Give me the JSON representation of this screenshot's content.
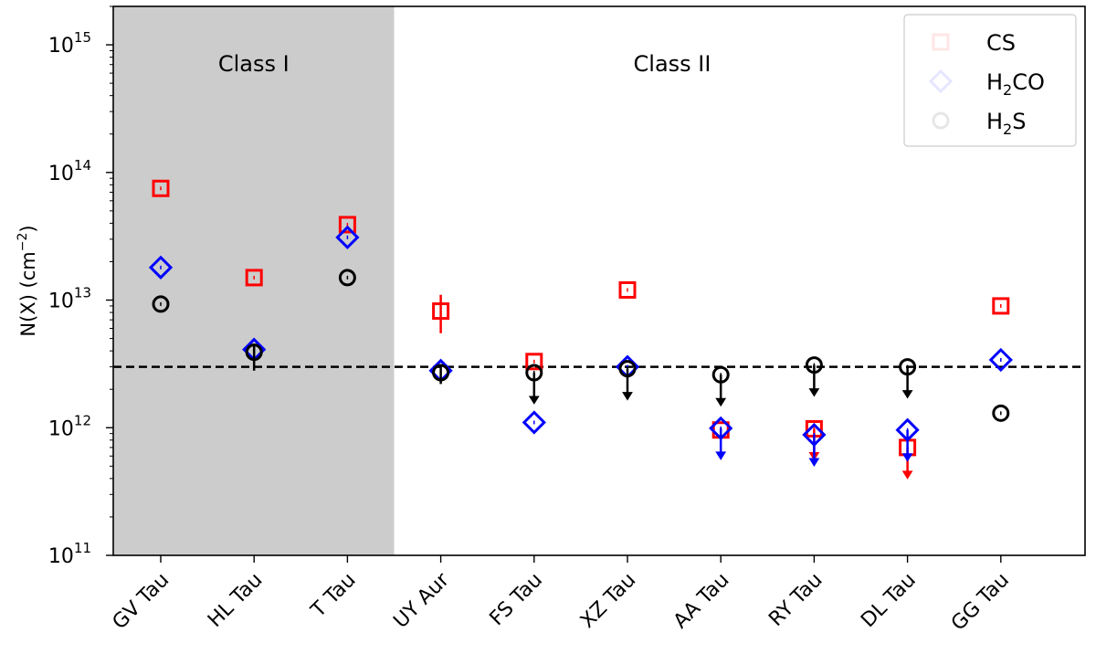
{
  "chart_data": {
    "type": "scatter",
    "categories": [
      "GV Tau",
      "HL Tau",
      "T Tau",
      "UY Aur",
      "FS Tau",
      "XZ Tau",
      "AA Tau",
      "RY Tau",
      "DL Tau",
      "GG Tau"
    ],
    "ylabel_parts": {
      "main": "N(X) (cm",
      "sup": "−2",
      "close": ")"
    },
    "yscale": "log",
    "ylim": [
      100000000000.0,
      2000000000000000.0
    ],
    "yticks": [
      {
        "value": 100000000000.0,
        "base": "10",
        "exp": "11"
      },
      {
        "value": 1000000000000.0,
        "base": "10",
        "exp": "12"
      },
      {
        "value": 10000000000000.0,
        "base": "10",
        "exp": "13"
      },
      {
        "value": 100000000000000.0,
        "base": "10",
        "exp": "14"
      },
      {
        "value": 1000000000000000.0,
        "base": "10",
        "exp": "15"
      }
    ],
    "shaded_region": {
      "from_category": "GV Tau",
      "to_category": "T Tau",
      "color": "#cccccc"
    },
    "group_labels": [
      {
        "text": "Class I",
        "color": "#ff0000"
      },
      {
        "text": "Class II",
        "color": "#0000ff"
      }
    ],
    "reference_line": {
      "value": 3000000000000.0,
      "style": "dashed",
      "color": "#000000"
    },
    "series": [
      {
        "name": "CS",
        "marker": "square",
        "color": "#ff0000",
        "points": [
          {
            "category": "GV Tau",
            "value": 75000000000000.0
          },
          {
            "category": "HL Tau",
            "value": 15000000000000.0
          },
          {
            "category": "T Tau",
            "value": 39000000000000.0
          },
          {
            "category": "UY Aur",
            "value": 8200000000000.0,
            "err_low": 5500000000000.0,
            "err_high": 11000000000000.0
          },
          {
            "category": "FS Tau",
            "value": 3300000000000.0
          },
          {
            "category": "XZ Tau",
            "value": 12000000000000.0
          },
          {
            "category": "AA Tau",
            "value": 960000000000.0
          },
          {
            "category": "RY Tau",
            "value": 980000000000.0,
            "upper_limit": true
          },
          {
            "category": "DL Tau",
            "value": 700000000000.0,
            "upper_limit": true
          },
          {
            "category": "GG Tau",
            "value": 9000000000000.0
          }
        ]
      },
      {
        "name": "H2CO",
        "marker": "diamond",
        "color": "#0000ff",
        "points": [
          {
            "category": "GV Tau",
            "value": 18000000000000.0
          },
          {
            "category": "HL Tau",
            "value": 4100000000000.0
          },
          {
            "category": "T Tau",
            "value": 31000000000000.0
          },
          {
            "category": "UY Aur",
            "value": 2800000000000.0
          },
          {
            "category": "FS Tau",
            "value": 1100000000000.0
          },
          {
            "category": "XZ Tau",
            "value": 3000000000000.0
          },
          {
            "category": "AA Tau",
            "value": 990000000000.0,
            "upper_limit": true
          },
          {
            "category": "RY Tau",
            "value": 880000000000.0,
            "upper_limit": true
          },
          {
            "category": "DL Tau",
            "value": 960000000000.0,
            "upper_limit": true
          },
          {
            "category": "GG Tau",
            "value": 3400000000000.0
          }
        ]
      },
      {
        "name": "H2S",
        "marker": "circle",
        "color": "#000000",
        "points": [
          {
            "category": "GV Tau",
            "value": 9300000000000.0
          },
          {
            "category": "HL Tau",
            "value": 3900000000000.0,
            "err_low": 2800000000000.0,
            "err_high": 4500000000000.0
          },
          {
            "category": "T Tau",
            "value": 15000000000000.0
          },
          {
            "category": "UY Aur",
            "value": 2700000000000.0,
            "err_low": 2200000000000.0,
            "err_high": 3100000000000.0
          },
          {
            "category": "FS Tau",
            "value": 2700000000000.0,
            "upper_limit": true
          },
          {
            "category": "XZ Tau",
            "value": 2900000000000.0,
            "upper_limit": true
          },
          {
            "category": "AA Tau",
            "value": 2600000000000.0,
            "upper_limit": true
          },
          {
            "category": "RY Tau",
            "value": 3100000000000.0,
            "upper_limit": true
          },
          {
            "category": "DL Tau",
            "value": 3000000000000.0,
            "upper_limit": true
          },
          {
            "category": "GG Tau",
            "value": 1300000000000.0
          }
        ]
      }
    ],
    "legend": {
      "position": "top-right",
      "entries": [
        {
          "series": "CS",
          "parts": [
            {
              "t": "CS",
              "sub": false
            }
          ]
        },
        {
          "series": "H2CO",
          "parts": [
            {
              "t": "H",
              "sub": false
            },
            {
              "t": "2",
              "sub": true
            },
            {
              "t": "CO",
              "sub": false
            }
          ]
        },
        {
          "series": "H2S",
          "parts": [
            {
              "t": "H",
              "sub": false
            },
            {
              "t": "2",
              "sub": true
            },
            {
              "t": "S",
              "sub": false
            }
          ]
        }
      ]
    }
  }
}
